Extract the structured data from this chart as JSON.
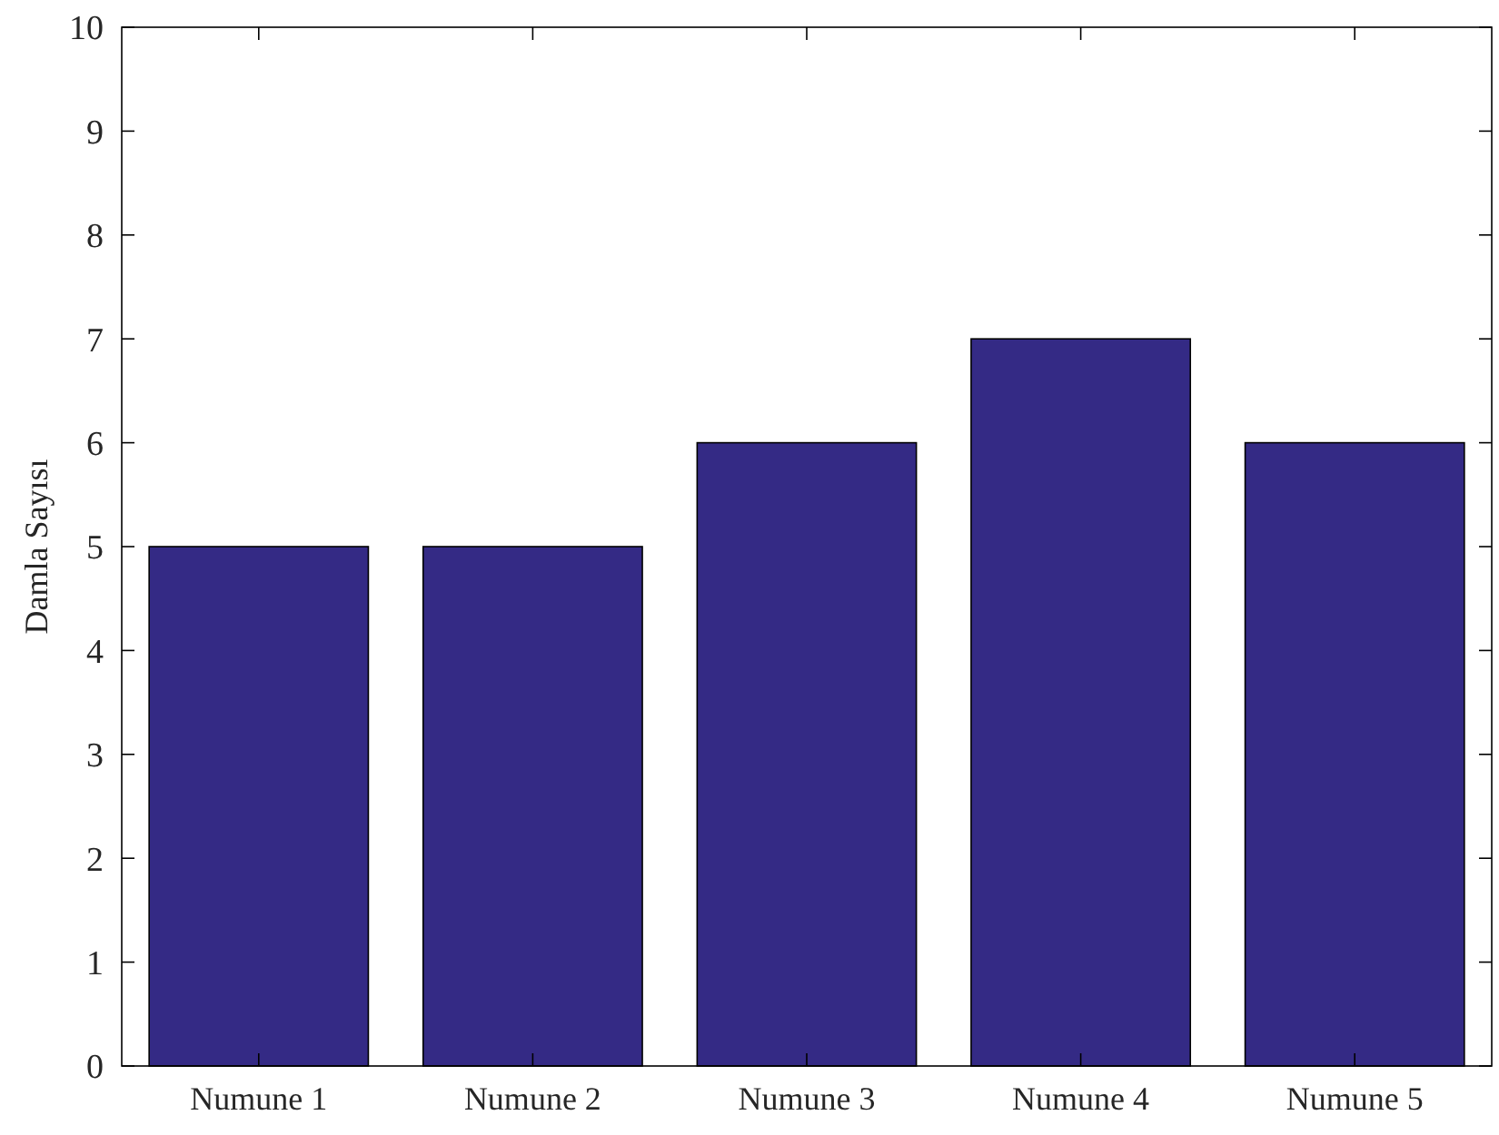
{
  "chart_data": {
    "type": "bar",
    "ylabel": "Damla Sayısı",
    "categories": [
      "Numune 1",
      "Numune 2",
      "Numune 3",
      "Numune 4",
      "Numune 5"
    ],
    "values": [
      5,
      5,
      6,
      7,
      6
    ],
    "color": "#342a85",
    "ylim": [
      0,
      10
    ],
    "yticks": [
      0,
      1,
      2,
      3,
      4,
      5,
      6,
      7,
      8,
      9,
      10
    ],
    "grid": false
  }
}
